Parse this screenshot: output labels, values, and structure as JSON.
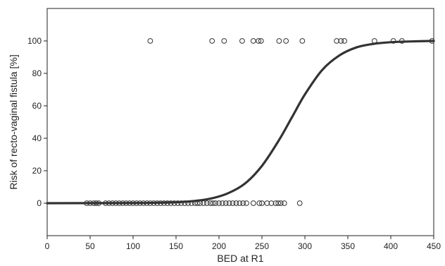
{
  "chart_data": {
    "type": "scatter",
    "xlabel": "BED at R1",
    "ylabel": "Risk of recto-vaginal fistula [%]",
    "xlim": [
      0,
      450
    ],
    "ylim": [
      -20,
      120
    ],
    "xticks": [
      "0",
      "50",
      "100",
      "150",
      "200",
      "250",
      "300",
      "350",
      "400",
      "450"
    ],
    "xtick_values": [
      0,
      50,
      100,
      150,
      200,
      250,
      300,
      350,
      400,
      450
    ],
    "yticks": [
      "0",
      "20",
      "40",
      "60",
      "80",
      "100"
    ],
    "ytick_values": [
      0,
      20,
      40,
      60,
      80,
      100
    ],
    "grid": false,
    "series": [
      {
        "kind": "observed",
        "marker": "open-circle",
        "points": [
          {
            "x": 120,
            "y": 100
          },
          {
            "x": 192,
            "y": 100
          },
          {
            "x": 206,
            "y": 100
          },
          {
            "x": 227,
            "y": 100
          },
          {
            "x": 240,
            "y": 100
          },
          {
            "x": 246,
            "y": 100
          },
          {
            "x": 249,
            "y": 100
          },
          {
            "x": 270,
            "y": 100
          },
          {
            "x": 278,
            "y": 100
          },
          {
            "x": 297,
            "y": 100
          },
          {
            "x": 337,
            "y": 100
          },
          {
            "x": 342,
            "y": 100
          },
          {
            "x": 346,
            "y": 100
          },
          {
            "x": 381,
            "y": 100
          },
          {
            "x": 403,
            "y": 100
          },
          {
            "x": 413,
            "y": 100
          },
          {
            "x": 448,
            "y": 100
          },
          {
            "x": 46,
            "y": 0
          },
          {
            "x": 50,
            "y": 0
          },
          {
            "x": 54,
            "y": 0
          },
          {
            "x": 57,
            "y": 0
          },
          {
            "x": 60,
            "y": 0
          },
          {
            "x": 68,
            "y": 0
          },
          {
            "x": 72,
            "y": 0
          },
          {
            "x": 76,
            "y": 0
          },
          {
            "x": 80,
            "y": 0
          },
          {
            "x": 84,
            "y": 0
          },
          {
            "x": 88,
            "y": 0
          },
          {
            "x": 92,
            "y": 0
          },
          {
            "x": 96,
            "y": 0
          },
          {
            "x": 100,
            "y": 0
          },
          {
            "x": 104,
            "y": 0
          },
          {
            "x": 108,
            "y": 0
          },
          {
            "x": 112,
            "y": 0
          },
          {
            "x": 116,
            "y": 0
          },
          {
            "x": 120,
            "y": 0
          },
          {
            "x": 124,
            "y": 0
          },
          {
            "x": 128,
            "y": 0
          },
          {
            "x": 132,
            "y": 0
          },
          {
            "x": 136,
            "y": 0
          },
          {
            "x": 140,
            "y": 0
          },
          {
            "x": 144,
            "y": 0
          },
          {
            "x": 148,
            "y": 0
          },
          {
            "x": 152,
            "y": 0
          },
          {
            "x": 156,
            "y": 0
          },
          {
            "x": 160,
            "y": 0
          },
          {
            "x": 164,
            "y": 0
          },
          {
            "x": 168,
            "y": 0
          },
          {
            "x": 172,
            "y": 0
          },
          {
            "x": 175,
            "y": 0
          },
          {
            "x": 178,
            "y": 0
          },
          {
            "x": 182,
            "y": 0
          },
          {
            "x": 186,
            "y": 0
          },
          {
            "x": 190,
            "y": 0
          },
          {
            "x": 193,
            "y": 0
          },
          {
            "x": 196,
            "y": 0
          },
          {
            "x": 200,
            "y": 0
          },
          {
            "x": 204,
            "y": 0
          },
          {
            "x": 208,
            "y": 0
          },
          {
            "x": 212,
            "y": 0
          },
          {
            "x": 216,
            "y": 0
          },
          {
            "x": 220,
            "y": 0
          },
          {
            "x": 224,
            "y": 0
          },
          {
            "x": 228,
            "y": 0
          },
          {
            "x": 232,
            "y": 0
          },
          {
            "x": 240,
            "y": 0
          },
          {
            "x": 247,
            "y": 0
          },
          {
            "x": 250,
            "y": 0
          },
          {
            "x": 256,
            "y": 0
          },
          {
            "x": 261,
            "y": 0
          },
          {
            "x": 266,
            "y": 0
          },
          {
            "x": 269,
            "y": 0
          },
          {
            "x": 272,
            "y": 0
          },
          {
            "x": 276,
            "y": 0
          },
          {
            "x": 294,
            "y": 0
          }
        ]
      },
      {
        "kind": "fitted-curve",
        "style": "thick-solid",
        "curve": [
          {
            "x": 0,
            "y": 0
          },
          {
            "x": 100,
            "y": 0.1
          },
          {
            "x": 130,
            "y": 0.3
          },
          {
            "x": 150,
            "y": 0.6
          },
          {
            "x": 170,
            "y": 1.3
          },
          {
            "x": 190,
            "y": 2.8
          },
          {
            "x": 210,
            "y": 6
          },
          {
            "x": 230,
            "y": 12
          },
          {
            "x": 250,
            "y": 23
          },
          {
            "x": 270,
            "y": 39
          },
          {
            "x": 285,
            "y": 53
          },
          {
            "x": 300,
            "y": 67
          },
          {
            "x": 320,
            "y": 82
          },
          {
            "x": 340,
            "y": 91
          },
          {
            "x": 360,
            "y": 96
          },
          {
            "x": 380,
            "y": 98.2
          },
          {
            "x": 400,
            "y": 99.2
          },
          {
            "x": 425,
            "y": 99.7
          },
          {
            "x": 450,
            "y": 100
          }
        ]
      }
    ],
    "colors": {
      "marker": "#333333",
      "curve": "#333333",
      "axis": "#222222"
    }
  }
}
